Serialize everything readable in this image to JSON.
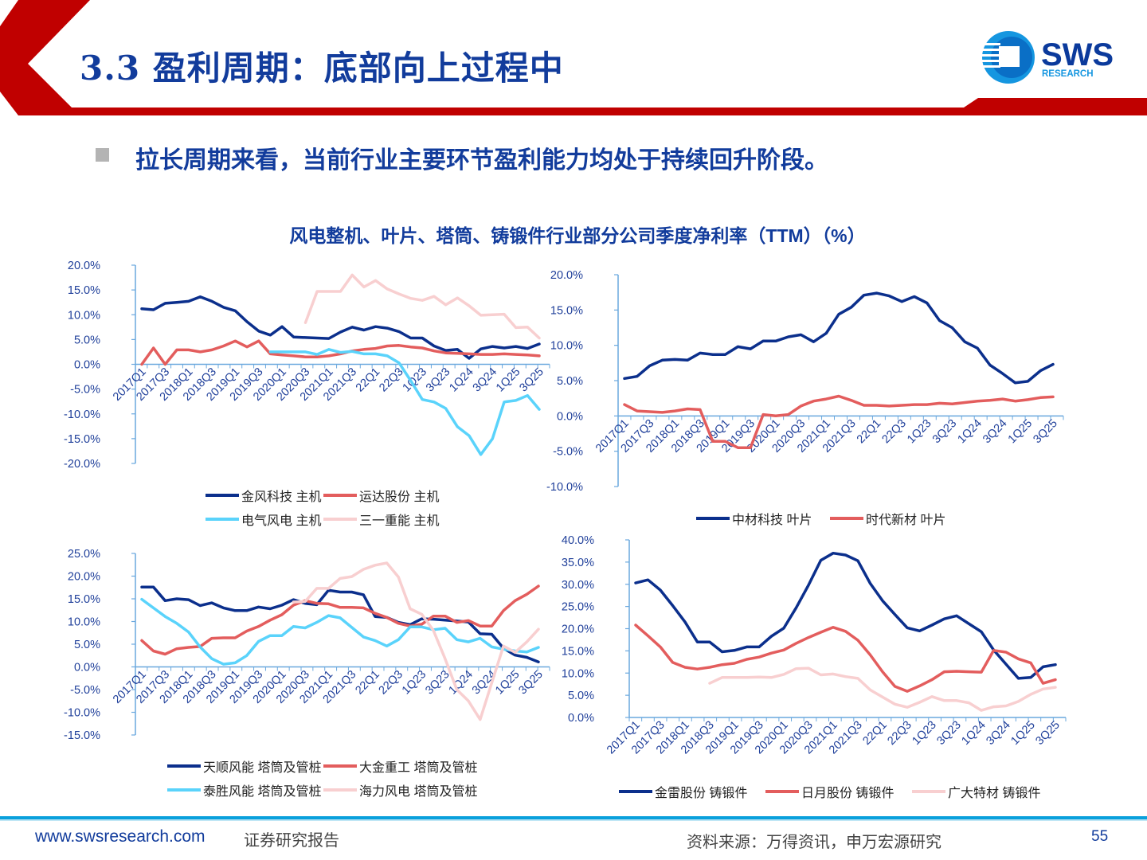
{
  "header": {
    "title": "3.3 盈利周期：底部向上过程中",
    "logo_text": "SWS",
    "logo_subtext": "RESEARCH",
    "accent_color": "#c00000",
    "brand_color": "#123c9c"
  },
  "subtitle": "拉长周期来看，当前行业主要环节盈利能力均处于持续回升阶段。",
  "chart_title": "风电整机、叶片、塔筒、铸锻件行业部分公司季度净利率（TTM）（%）",
  "chart_data": [
    {
      "type": "line",
      "title": "",
      "ylim": [
        -20,
        20
      ],
      "yticks": [
        "20.0%",
        "15.0%",
        "10.0%",
        "5.0%",
        "0.0%",
        "-5.0%",
        "-10.0%",
        "-15.0%",
        "-20.0%"
      ],
      "categories": [
        "2017Q1",
        "2017Q2",
        "2017Q3",
        "2017Q4",
        "2018Q1",
        "2018Q2",
        "2018Q3",
        "2018Q4",
        "2019Q1",
        "2019Q2",
        "2019Q3",
        "2019Q4",
        "2020Q1",
        "2020Q2",
        "2020Q3",
        "2020Q4",
        "2021Q1",
        "2021Q2",
        "2021Q3",
        "2021Q4",
        "22Q1",
        "22Q2",
        "22Q3",
        "22Q4",
        "1Q23",
        "2Q23",
        "3Q23",
        "4Q23",
        "1Q24",
        "2Q24",
        "3Q24",
        "4Q24",
        "1Q25",
        "2Q25",
        "3Q25"
      ],
      "legend": "bottom",
      "series": [
        {
          "name": "金风科技 主机",
          "color": "#0b2f8c",
          "values": [
            11.2,
            11.0,
            12.3,
            12.5,
            12.7,
            13.6,
            12.7,
            11.5,
            10.8,
            8.6,
            6.7,
            5.9,
            7.6,
            5.5,
            5.4,
            5.3,
            5.2,
            6.5,
            7.5,
            6.9,
            7.6,
            7.3,
            6.6,
            5.3,
            5.3,
            3.7,
            2.8,
            3.0,
            1.2,
            3.1,
            3.6,
            3.3,
            3.6,
            3.2,
            4.1
          ]
        },
        {
          "name": "运达股份 主机",
          "color": "#e35d5d",
          "values": [
            0,
            3.3,
            0,
            2.9,
            2.9,
            2.5,
            2.9,
            3.7,
            4.7,
            3.5,
            4.7,
            2.1,
            1.9,
            1.7,
            1.5,
            1.5,
            1.7,
            2.1,
            2.7,
            3.0,
            3.2,
            3.7,
            3.8,
            3.5,
            3.3,
            2.7,
            2.3,
            2.2,
            2.1,
            2.0,
            2.0,
            2.1,
            2.0,
            1.9,
            1.7
          ]
        },
        {
          "name": "电气风电 主机",
          "color": "#5ad3fb",
          "values": [
            null,
            null,
            null,
            null,
            null,
            null,
            null,
            null,
            null,
            null,
            null,
            2.5,
            2.5,
            2.5,
            2.5,
            2.0,
            3.0,
            2.4,
            2.6,
            2.1,
            2.1,
            1.7,
            0.3,
            -3.3,
            -7.1,
            -7.6,
            -8.9,
            -12.6,
            -14.4,
            -18.2,
            -15.0,
            -7.6,
            -7.3,
            -6.3,
            -9.1
          ]
        },
        {
          "name": "三一重能 主机",
          "color": "#f8cfd0",
          "values": [
            null,
            null,
            null,
            null,
            null,
            null,
            null,
            null,
            null,
            null,
            null,
            null,
            null,
            null,
            8.4,
            14.7,
            14.7,
            14.7,
            18.0,
            15.6,
            16.9,
            15.2,
            14.2,
            13.3,
            12.9,
            13.7,
            12.0,
            13.4,
            11.8,
            9.9,
            10.0,
            10.1,
            7.4,
            7.5,
            5.3
          ]
        }
      ]
    },
    {
      "type": "line",
      "title": "",
      "ylim": [
        -10,
        20
      ],
      "yticks": [
        "20.0%",
        "15.0%",
        "10.0%",
        "5.0%",
        "0.0%",
        "-5.0%",
        "-10.0%"
      ],
      "categories": [
        "2017Q1",
        "2017Q2",
        "2017Q3",
        "2017Q4",
        "2018Q1",
        "2018Q2",
        "2018Q3",
        "2018Q4",
        "2019Q1",
        "2019Q2",
        "2019Q3",
        "2019Q4",
        "2020Q1",
        "2020Q2",
        "2020Q3",
        "2020Q4",
        "2021Q1",
        "2021Q2",
        "2021Q3",
        "2021Q4",
        "22Q1",
        "22Q2",
        "22Q3",
        "22Q4",
        "1Q23",
        "2Q23",
        "3Q23",
        "4Q23",
        "1Q24",
        "2Q24",
        "3Q24",
        "4Q24",
        "1Q25",
        "2Q25",
        "3Q25"
      ],
      "legend": "bottom",
      "series": [
        {
          "name": "中材科技 叶片",
          "color": "#0b2f8c",
          "values": [
            5.3,
            5.6,
            7.1,
            7.9,
            8.0,
            7.9,
            8.9,
            8.7,
            8.7,
            9.8,
            9.5,
            10.6,
            10.6,
            11.2,
            11.5,
            10.5,
            11.7,
            14.4,
            15.4,
            17.1,
            17.4,
            17.0,
            16.2,
            16.9,
            16.0,
            13.5,
            12.5,
            10.5,
            9.6,
            7.2,
            6.0,
            4.7,
            4.9,
            6.4,
            7.3
          ]
        },
        {
          "name": "时代新材 叶片",
          "color": "#e35d5d",
          "values": [
            1.6,
            0.7,
            0.6,
            0.5,
            0.7,
            1.0,
            0.9,
            -3.6,
            -3.6,
            -4.5,
            -4.5,
            0.2,
            0.0,
            0.2,
            1.4,
            2.1,
            2.4,
            2.8,
            2.2,
            1.5,
            1.5,
            1.4,
            1.5,
            1.6,
            1.6,
            1.8,
            1.7,
            1.9,
            2.1,
            2.2,
            2.4,
            2.1,
            2.3,
            2.6,
            2.7
          ]
        }
      ]
    },
    {
      "type": "line",
      "title": "",
      "ylim": [
        -15,
        25
      ],
      "yticks": [
        "25.0%",
        "20.0%",
        "15.0%",
        "10.0%",
        "5.0%",
        "0.0%",
        "-5.0%",
        "-10.0%",
        "-15.0%"
      ],
      "categories": [
        "2017Q1",
        "2017Q2",
        "2017Q3",
        "2017Q4",
        "2018Q1",
        "2018Q2",
        "2018Q3",
        "2018Q4",
        "2019Q1",
        "2019Q2",
        "2019Q3",
        "2019Q4",
        "2020Q1",
        "2020Q2",
        "2020Q3",
        "2020Q4",
        "2021Q1",
        "2021Q2",
        "2021Q3",
        "2021Q4",
        "22Q1",
        "22Q2",
        "22Q3",
        "22Q4",
        "1Q23",
        "2Q23",
        "3Q23",
        "4Q23",
        "1Q24",
        "2Q24",
        "3Q24",
        "4Q24",
        "1Q25",
        "2Q25",
        "3Q25"
      ],
      "legend": "bottom",
      "series": [
        {
          "name": "天顺风能 塔筒及管桩",
          "color": "#0b2f8c",
          "values": [
            17.6,
            17.6,
            14.6,
            15.0,
            14.8,
            13.5,
            14.1,
            13.0,
            12.4,
            12.4,
            13.2,
            12.8,
            13.6,
            14.8,
            14.0,
            13.7,
            16.9,
            16.5,
            16.5,
            15.9,
            11.1,
            10.9,
            9.8,
            9.3,
            10.6,
            10.5,
            10.3,
            10.1,
            9.9,
            7.3,
            7.2,
            4.1,
            2.6,
            2.1,
            1.1
          ]
        },
        {
          "name": "大金重工 塔筒及管桩",
          "color": "#e35d5d",
          "values": [
            5.8,
            3.5,
            2.8,
            4.0,
            4.3,
            4.5,
            6.3,
            6.4,
            6.4,
            7.9,
            8.9,
            10.3,
            11.5,
            13.6,
            14.6,
            14.0,
            13.9,
            13.1,
            13.1,
            13.0,
            11.8,
            10.9,
            9.6,
            9.0,
            9.4,
            11.2,
            11.2,
            9.8,
            10.2,
            9.0,
            9.0,
            12.4,
            14.6,
            16.0,
            17.8
          ]
        },
        {
          "name": "泰胜风能 塔筒及管桩",
          "color": "#5ad3fb",
          "values": [
            14.9,
            13.0,
            11.1,
            9.6,
            7.7,
            4.4,
            1.8,
            0.6,
            0.9,
            2.5,
            5.6,
            6.9,
            6.9,
            8.9,
            8.6,
            9.8,
            11.3,
            10.8,
            8.7,
            6.6,
            5.8,
            4.6,
            6.0,
            8.8,
            8.8,
            8.2,
            8.5,
            6.0,
            5.5,
            6.3,
            4.4,
            3.9,
            3.5,
            3.3,
            4.3
          ]
        },
        {
          "name": "海力风电 塔筒及管桩",
          "color": "#f8cfd0",
          "values": [
            null,
            null,
            null,
            null,
            null,
            null,
            null,
            null,
            null,
            null,
            null,
            null,
            null,
            14.3,
            14.4,
            17.3,
            17.3,
            19.5,
            19.9,
            21.5,
            22.4,
            22.9,
            19.8,
            12.8,
            11.6,
            8.0,
            1.8,
            -5.0,
            -7.5,
            -11.6,
            -3.5,
            4.6,
            3.2,
            5.5,
            8.3
          ]
        }
      ]
    },
    {
      "type": "line",
      "title": "",
      "ylim": [
        0,
        40
      ],
      "yticks": [
        "40.0%",
        "35.0%",
        "30.0%",
        "25.0%",
        "20.0%",
        "15.0%",
        "10.0%",
        "5.0%",
        "0.0%"
      ],
      "categories": [
        "2017Q1",
        "2017Q2",
        "2017Q3",
        "2017Q4",
        "2018Q1",
        "2018Q2",
        "2018Q3",
        "2018Q4",
        "2019Q1",
        "2019Q2",
        "2019Q3",
        "2019Q4",
        "2020Q1",
        "2020Q2",
        "2020Q3",
        "2020Q4",
        "2021Q1",
        "2021Q2",
        "2021Q3",
        "2021Q4",
        "22Q1",
        "22Q2",
        "22Q3",
        "22Q4",
        "1Q23",
        "2Q23",
        "3Q23",
        "4Q23",
        "1Q24",
        "2Q24",
        "3Q24",
        "4Q24",
        "1Q25",
        "2Q25",
        "3Q25"
      ],
      "legend": "bottom",
      "series": [
        {
          "name": "金雷股份 铸锻件",
          "color": "#0b2f8c",
          "values": [
            30.3,
            31.0,
            28.7,
            25.2,
            21.5,
            17.0,
            17.0,
            14.8,
            15.1,
            15.9,
            15.9,
            18.3,
            20.1,
            24.7,
            29.8,
            35.4,
            37.0,
            36.6,
            35.3,
            30.2,
            26.3,
            23.2,
            20.2,
            19.5,
            20.8,
            22.2,
            22.9,
            21.1,
            19.3,
            15.2,
            12.0,
            8.8,
            9.0,
            11.4,
            11.9
          ]
        },
        {
          "name": "日月股份 铸锻件",
          "color": "#e35d5d",
          "values": [
            20.8,
            18.4,
            15.9,
            12.4,
            11.3,
            10.9,
            11.3,
            11.9,
            12.2,
            13.1,
            13.6,
            14.5,
            15.2,
            16.7,
            18.0,
            19.2,
            20.3,
            19.4,
            17.4,
            14.1,
            10.3,
            7.0,
            5.9,
            7.1,
            8.5,
            10.3,
            10.4,
            10.3,
            10.2,
            15.1,
            14.7,
            13.2,
            12.3,
            7.7,
            8.5
          ]
        },
        {
          "name": "广大特材 铸锻件",
          "color": "#f8cfd0",
          "values": [
            null,
            null,
            null,
            null,
            null,
            null,
            7.7,
            9.0,
            9.0,
            9.0,
            9.1,
            9.0,
            9.7,
            11.0,
            11.1,
            9.6,
            9.8,
            9.2,
            8.8,
            6.2,
            4.6,
            3.0,
            2.3,
            3.4,
            4.7,
            3.8,
            3.8,
            3.3,
            1.6,
            2.4,
            2.6,
            3.6,
            5.2,
            6.4,
            6.8
          ]
        }
      ]
    }
  ],
  "footer": {
    "url": "www.swsresearch.com",
    "report_type": "证券研究报告",
    "source": "资料来源：万得资讯，申万宏源研究",
    "page_number": "55"
  }
}
